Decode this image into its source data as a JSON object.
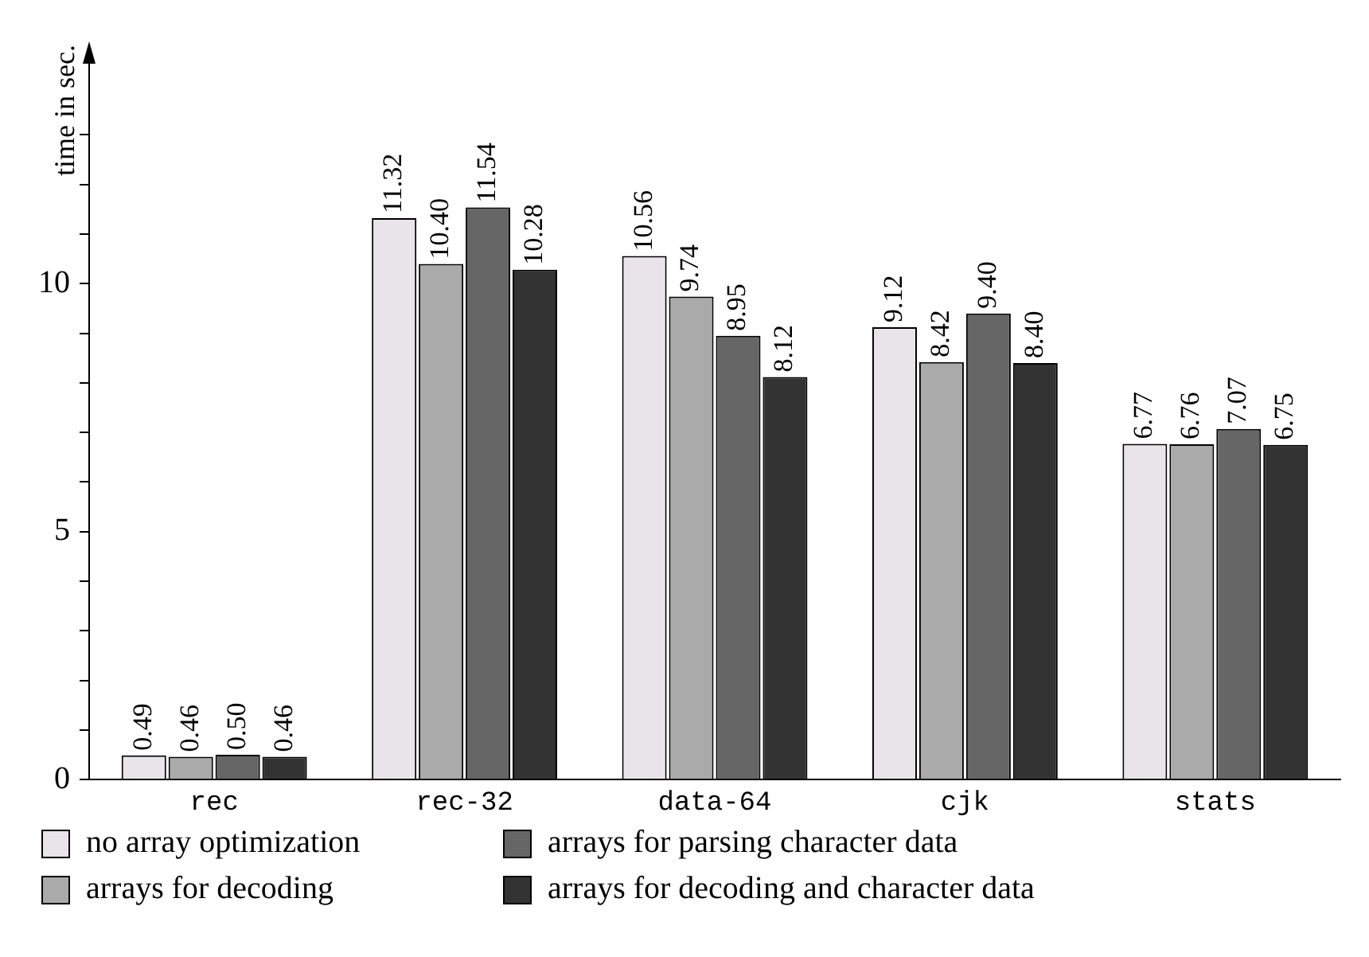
{
  "chart_data": {
    "type": "bar",
    "ylabel": "time in sec.",
    "categories": [
      "rec",
      "rec-32",
      "data-64",
      "cjk",
      "stats"
    ],
    "series": [
      {
        "name": "no array optimization",
        "color": "#e8e4e8",
        "values": [
          0.49,
          11.32,
          10.56,
          9.12,
          6.77
        ],
        "value_labels": [
          "0.49",
          "11.32",
          "10.56",
          "9.12",
          "6.77"
        ]
      },
      {
        "name": "arrays for decoding",
        "color": "#aaaaaa",
        "values": [
          0.46,
          10.4,
          9.74,
          8.42,
          6.76
        ],
        "value_labels": [
          "0.46",
          "10.40",
          "9.74",
          "8.42",
          "6.76"
        ]
      },
      {
        "name": "arrays for parsing character data",
        "color": "#666666",
        "values": [
          0.5,
          11.54,
          8.95,
          9.4,
          7.07
        ],
        "value_labels": [
          "0.50",
          "11.54",
          "8.95",
          "9.40",
          "7.07"
        ]
      },
      {
        "name": "arrays for decoding and character data",
        "color": "#333333",
        "values": [
          0.46,
          10.28,
          8.12,
          8.4,
          6.75
        ],
        "value_labels": [
          "0.46",
          "10.28",
          "8.12",
          "8.40",
          "6.75"
        ]
      }
    ],
    "ylim": [
      0,
      14.5
    ],
    "yticks": [
      0,
      {
        "value": 1,
        "label": null
      },
      {
        "value": 2,
        "label": null
      },
      {
        "value": 3,
        "label": null
      },
      {
        "value": 4,
        "label": null
      },
      5,
      {
        "value": 6,
        "label": null
      },
      {
        "value": 7,
        "label": null
      },
      {
        "value": 8,
        "label": null
      },
      {
        "value": 9,
        "label": null
      },
      10,
      {
        "value": 11,
        "label": null
      },
      {
        "value": 12,
        "label": null
      },
      {
        "value": 13,
        "label": null
      }
    ],
    "legend": "bottom",
    "grid": false
  }
}
